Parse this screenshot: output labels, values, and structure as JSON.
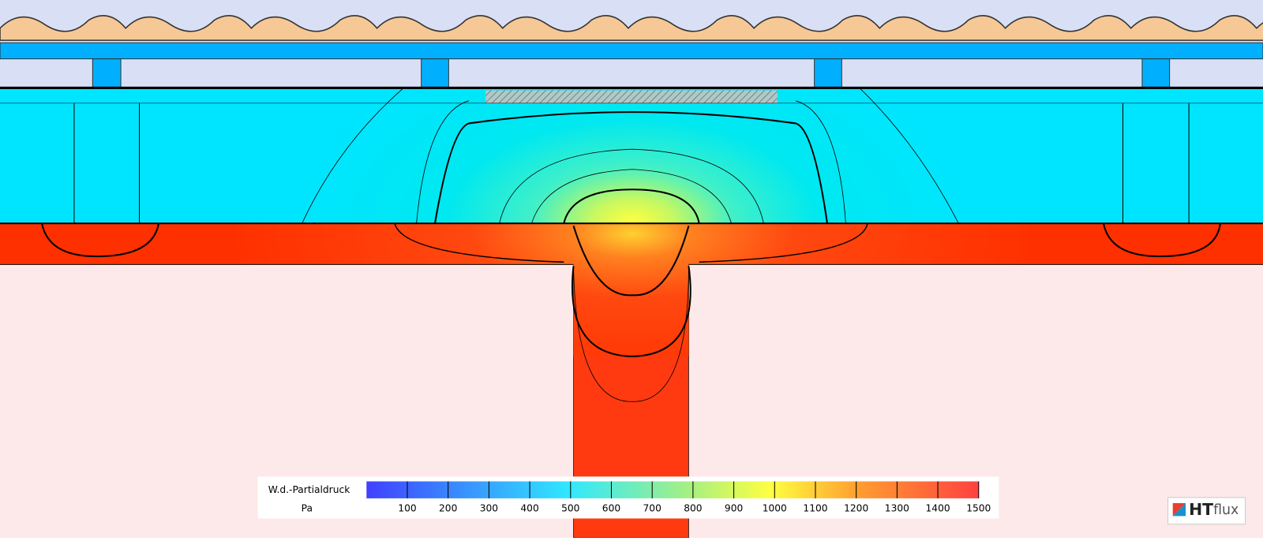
{
  "legend": {
    "title": "W.d.-Partialdruck",
    "unit": "Pa",
    "range": [
      0,
      1500
    ],
    "ticks": [
      100,
      200,
      300,
      400,
      500,
      600,
      700,
      800,
      900,
      1000,
      1100,
      1200,
      1300,
      1400,
      1500
    ]
  },
  "logo": {
    "bold": "HT",
    "light": "flux"
  }
}
